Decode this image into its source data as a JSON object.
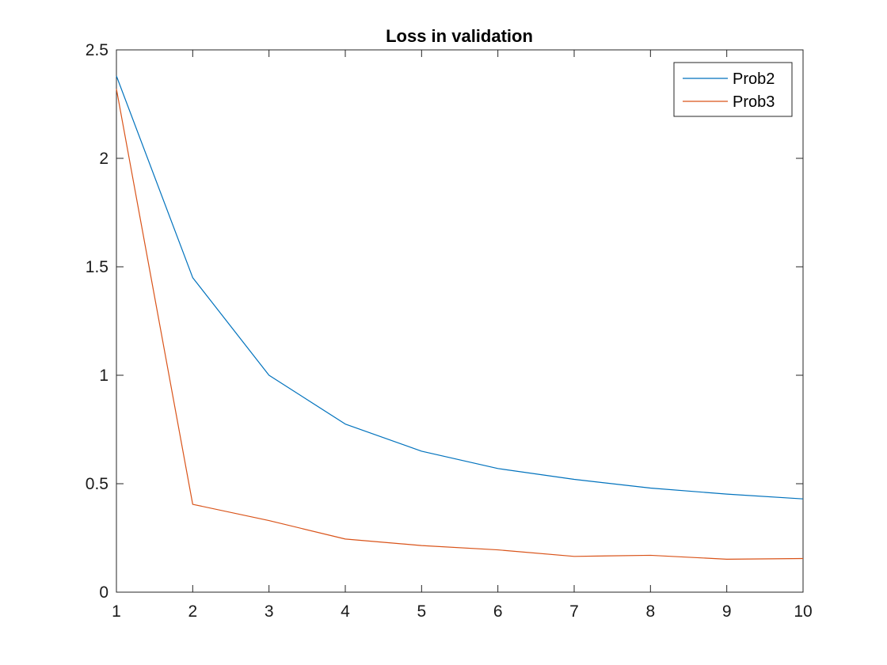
{
  "chart_data": {
    "type": "line",
    "title": "Loss in validation",
    "xlabel": "",
    "ylabel": "",
    "x": [
      1,
      2,
      3,
      4,
      5,
      6,
      7,
      8,
      9,
      10
    ],
    "xlim": [
      1,
      10
    ],
    "ylim": [
      0,
      2.5
    ],
    "xticks": [
      1,
      2,
      3,
      4,
      5,
      6,
      7,
      8,
      9,
      10
    ],
    "xtick_labels": [
      "1",
      "2",
      "3",
      "4",
      "5",
      "6",
      "7",
      "8",
      "9",
      "10"
    ],
    "yticks": [
      0,
      0.5,
      1,
      1.5,
      2,
      2.5
    ],
    "ytick_labels": [
      "0",
      "0.5",
      "1",
      "1.5",
      "2",
      "2.5"
    ],
    "grid": false,
    "legend_position": "top-right",
    "series": [
      {
        "name": "Prob2",
        "color": "#0072BD",
        "values": [
          2.38,
          1.45,
          1.0,
          0.775,
          0.65,
          0.57,
          0.52,
          0.48,
          0.452,
          0.43
        ]
      },
      {
        "name": "Prob3",
        "color": "#D95319",
        "values": [
          2.32,
          0.405,
          0.33,
          0.245,
          0.215,
          0.195,
          0.165,
          0.17,
          0.152,
          0.155
        ]
      }
    ]
  }
}
